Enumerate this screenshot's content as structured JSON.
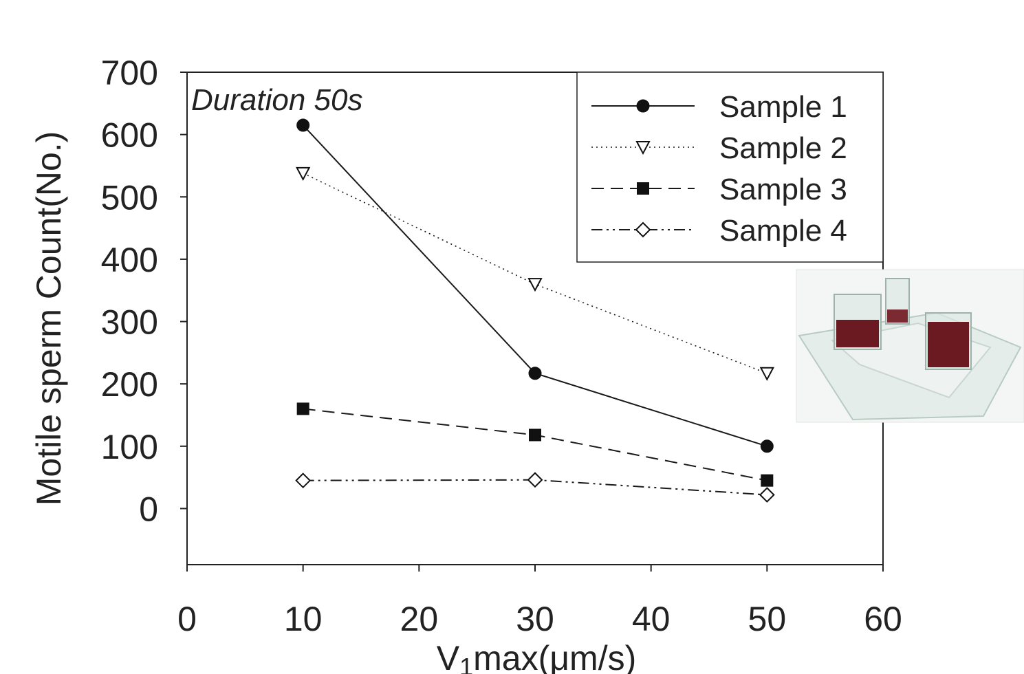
{
  "chart_data": {
    "type": "line",
    "annotation": "Duration 50s",
    "xlabel": {
      "prefix": "V",
      "subscript": "1",
      "suffix": "max(μm/s)"
    },
    "ylabel": "Motile sperm Count(No.)",
    "xlim": [
      0,
      60
    ],
    "ylim": [
      -90,
      700
    ],
    "xticks": [
      0,
      10,
      20,
      30,
      40,
      50,
      60
    ],
    "yticks": [
      0,
      100,
      200,
      300,
      400,
      500,
      600,
      700
    ],
    "legend_position": "top-right",
    "grid": false,
    "x": [
      10,
      30,
      50
    ],
    "series": [
      {
        "name": "Sample 1",
        "values": [
          615,
          217,
          100
        ],
        "marker": "circle-filled",
        "dash": "solid"
      },
      {
        "name": "Sample 2",
        "values": [
          538,
          360,
          217
        ],
        "marker": "triangle-down-open",
        "dash": "dotted"
      },
      {
        "name": "Sample 3",
        "values": [
          160,
          118,
          45
        ],
        "marker": "square-filled",
        "dash": "dashed"
      },
      {
        "name": "Sample 4",
        "values": [
          45,
          46,
          22
        ],
        "marker": "diamond-open",
        "dash": "dash-dot-dot"
      }
    ],
    "inset": {
      "description-icon": "microfluidic-device-photo-icon"
    }
  },
  "colors": {
    "line": "#1a1a1a",
    "axis": "#222222",
    "inset_liquid": "#6b1a22",
    "inset_glass": "#dfe9e4"
  }
}
